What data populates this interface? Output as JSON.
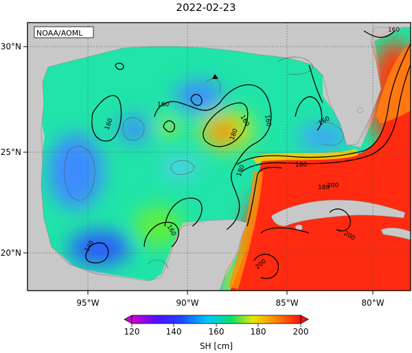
{
  "title": "2022-02-23",
  "credit": "NOAA/AOML",
  "map": {
    "x_ticks": [
      "95°W",
      "90°W",
      "85°W",
      "80°W"
    ],
    "y_ticks": [
      "30°N",
      "25°N",
      "20°N"
    ],
    "contour_labels": [
      "160",
      "160",
      "160",
      "160",
      "160",
      "180",
      "180",
      "180",
      "180",
      "160",
      "140",
      "200",
      "200",
      "200",
      "160"
    ],
    "marker": "triangle"
  },
  "colorbar": {
    "ticks": [
      "120",
      "140",
      "160",
      "180",
      "200"
    ],
    "label": "SH [cm]",
    "range": [
      120,
      200
    ],
    "colors": [
      "#d000d0",
      "#2010ff",
      "#00c8ff",
      "#00e070",
      "#e8e800",
      "#ff8000",
      "#ff1010"
    ]
  }
}
